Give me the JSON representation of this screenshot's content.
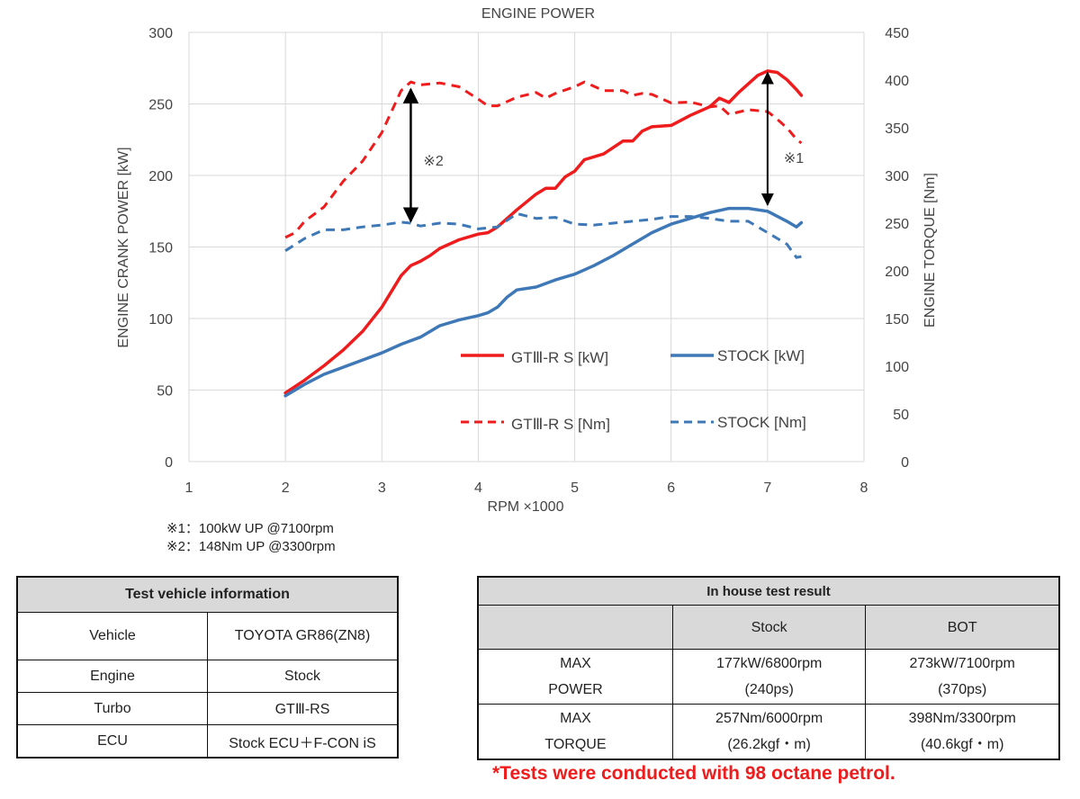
{
  "chart_data": {
    "type": "line",
    "title": "ENGINE POWER",
    "xlabel": "RPM ×1000",
    "ylabel_left": "ENGINE CRANK POWER [kW]",
    "ylabel_right": "ENGINE TORQUE [Nm]",
    "xlim": [
      1,
      8
    ],
    "ylim_left": [
      0,
      300
    ],
    "ylim_right": [
      0,
      450
    ],
    "x_ticks": [
      "1",
      "2",
      "3",
      "4",
      "5",
      "6",
      "7",
      "8"
    ],
    "y_left_ticks": [
      "0",
      "50",
      "100",
      "150",
      "200",
      "250",
      "300"
    ],
    "y_right_ticks": [
      "0",
      "50",
      "100",
      "150",
      "200",
      "250",
      "300",
      "350",
      "400",
      "450"
    ],
    "series": [
      {
        "name": "GTⅢ-R S [kW]",
        "axis": "left",
        "color": "#ee1c1c",
        "dash": false,
        "x": [
          2.0,
          2.2,
          2.4,
          2.6,
          2.8,
          3.0,
          3.1,
          3.2,
          3.3,
          3.4,
          3.5,
          3.6,
          3.8,
          4.0,
          4.1,
          4.2,
          4.4,
          4.6,
          4.7,
          4.8,
          4.9,
          5.0,
          5.1,
          5.3,
          5.5,
          5.6,
          5.7,
          5.8,
          6.0,
          6.2,
          6.4,
          6.5,
          6.6,
          6.7,
          6.9,
          7.0,
          7.1,
          7.2,
          7.3,
          7.35
        ],
        "y": [
          48,
          57,
          67,
          78,
          91,
          108,
          119,
          130,
          137,
          140,
          144,
          149,
          155,
          159,
          160,
          164,
          176,
          187,
          191,
          191,
          199,
          203,
          211,
          215,
          224,
          224,
          231,
          234,
          235,
          242,
          248,
          254,
          251,
          258,
          270,
          273,
          272,
          267,
          260,
          256
        ]
      },
      {
        "name": "STOCK [kW]",
        "axis": "left",
        "color": "#3f78b6",
        "dash": false,
        "x": [
          2.0,
          2.2,
          2.4,
          2.6,
          2.8,
          3.0,
          3.2,
          3.4,
          3.6,
          3.8,
          4.0,
          4.1,
          4.2,
          4.3,
          4.4,
          4.6,
          4.8,
          5.0,
          5.2,
          5.4,
          5.6,
          5.8,
          6.0,
          6.2,
          6.4,
          6.6,
          6.7,
          6.8,
          7.0,
          7.2,
          7.3,
          7.35
        ],
        "y": [
          46,
          54,
          61,
          66,
          71,
          76,
          82,
          87,
          95,
          99,
          102,
          104,
          108,
          115,
          120,
          122,
          127,
          131,
          137,
          144,
          152,
          160,
          166,
          170,
          174,
          177,
          177,
          177,
          175,
          168,
          164,
          167
        ]
      },
      {
        "name": "GTⅢ-R S [Nm]",
        "axis": "right",
        "color": "#ee1c1c",
        "dash": true,
        "x": [
          2.0,
          2.1,
          2.2,
          2.4,
          2.6,
          2.8,
          3.0,
          3.2,
          3.3,
          3.4,
          3.6,
          3.8,
          4.0,
          4.1,
          4.2,
          4.4,
          4.6,
          4.7,
          4.8,
          5.0,
          5.1,
          5.3,
          5.5,
          5.6,
          5.7,
          5.8,
          6.0,
          6.2,
          6.4,
          6.5,
          6.6,
          6.8,
          7.0,
          7.1,
          7.2,
          7.3,
          7.35
        ],
        "y": [
          235,
          240,
          252,
          267,
          294,
          315,
          345,
          389,
          398,
          395,
          397,
          393,
          380,
          373,
          373,
          382,
          387,
          381,
          386,
          393,
          398,
          389,
          389,
          384,
          386,
          385,
          376,
          377,
          372,
          373,
          364,
          369,
          367,
          359,
          350,
          338,
          334
        ]
      },
      {
        "name": "STOCK [Nm]",
        "axis": "right",
        "color": "#3f78b6",
        "dash": true,
        "x": [
          2.0,
          2.2,
          2.4,
          2.6,
          2.8,
          3.0,
          3.2,
          3.3,
          3.4,
          3.6,
          3.8,
          4.0,
          4.2,
          4.4,
          4.6,
          4.8,
          5.0,
          5.2,
          5.4,
          5.6,
          5.8,
          6.0,
          6.2,
          6.4,
          6.6,
          6.8,
          7.0,
          7.2,
          7.3,
          7.35
        ],
        "y": [
          221,
          234,
          243,
          243,
          246,
          248,
          251,
          250,
          247,
          250,
          249,
          244,
          246,
          260,
          255,
          256,
          249,
          248,
          250,
          252,
          254,
          257,
          257,
          255,
          252,
          252,
          240,
          228,
          214,
          215
        ]
      }
    ],
    "annotations": [
      {
        "label": "※1",
        "x": 7.0,
        "from_kw": 177,
        "to_kw": 273
      },
      {
        "label": "※2",
        "x": 3.3,
        "from_nm": 250,
        "to_nm": 398
      }
    ]
  },
  "notes": [
    "※1：100kW UP @7100rpm",
    "※2：148Nm UP @3300rpm"
  ],
  "vehicle_table": {
    "title": "Test vehicle information",
    "rows": [
      {
        "label": "Vehicle",
        "value": "TOYOTA GR86(ZN8)"
      },
      {
        "label": "Engine",
        "value": "Stock"
      },
      {
        "label": "Turbo",
        "value": "GTⅢ-RS"
      },
      {
        "label": "ECU",
        "value": "Stock ECU＋F-CON iS"
      }
    ]
  },
  "result_table": {
    "title": "In house test result",
    "col_stock": "Stock",
    "col_bot": "BOT",
    "rows": [
      {
        "label1": "MAX",
        "label2": "POWER",
        "stock1": "177kW/6800rpm",
        "stock2": "(240ps)",
        "bot1": "273kW/7100rpm",
        "bot2": "(370ps)"
      },
      {
        "label1": "MAX",
        "label2": "TORQUE",
        "stock1": "257Nm/6000rpm",
        "stock2": "(26.2kgf・m)",
        "bot1": "398Nm/3300rpm",
        "bot2": "(40.6kgf・m)"
      }
    ]
  },
  "footer": "*Tests were conducted with 98 octane petrol."
}
